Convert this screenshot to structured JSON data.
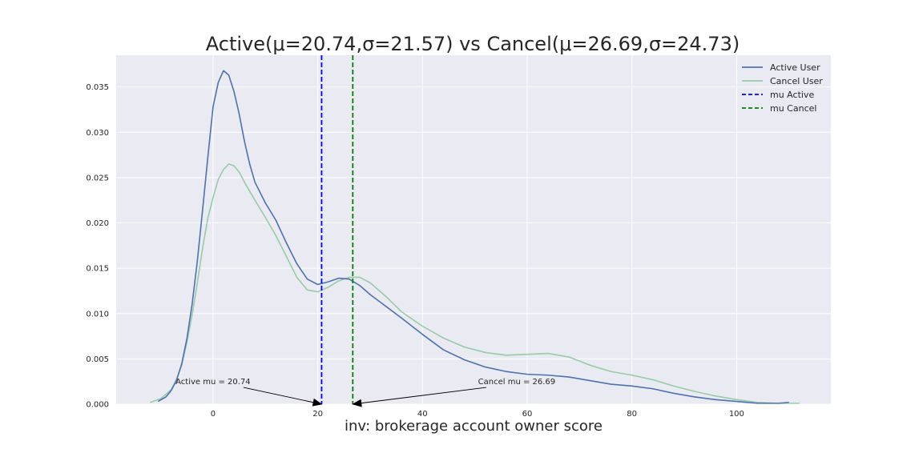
{
  "chart_data": {
    "type": "line",
    "title": "Active(μ=20.74,σ=21.57) vs Cancel(μ=26.69,σ=24.73)",
    "xlabel": "inv: brokerage account owner score",
    "ylabel": "",
    "xlim": [
      -18.5,
      118
    ],
    "ylim": [
      0,
      0.0385
    ],
    "x_ticks": [
      0,
      20,
      40,
      60,
      80,
      100
    ],
    "y_ticks": [
      0.0,
      0.005,
      0.01,
      0.015,
      0.02,
      0.025,
      0.03,
      0.035
    ],
    "y_tick_labels": [
      "0.000",
      "0.005",
      "0.010",
      "0.015",
      "0.020",
      "0.025",
      "0.030",
      "0.035"
    ],
    "grid": true,
    "legend_position": "top-right",
    "series": [
      {
        "name": "Active User",
        "color": "#4c72b0",
        "points": [
          [
            -10.5,
            0.0003
          ],
          [
            -9,
            0.0008
          ],
          [
            -8,
            0.0015
          ],
          [
            -7,
            0.0026
          ],
          [
            -6,
            0.0044
          ],
          [
            -5,
            0.0072
          ],
          [
            -4,
            0.011
          ],
          [
            -3,
            0.0158
          ],
          [
            -2,
            0.0214
          ],
          [
            -1,
            0.0272
          ],
          [
            0,
            0.0328
          ],
          [
            1,
            0.0355
          ],
          [
            2,
            0.0368
          ],
          [
            3,
            0.0363
          ],
          [
            4,
            0.0345
          ],
          [
            5,
            0.032
          ],
          [
            6,
            0.029
          ],
          [
            7,
            0.0265
          ],
          [
            8,
            0.0245
          ],
          [
            10,
            0.0222
          ],
          [
            12,
            0.0203
          ],
          [
            14,
            0.0178
          ],
          [
            16,
            0.0155
          ],
          [
            18,
            0.0138
          ],
          [
            20,
            0.0132
          ],
          [
            22,
            0.0135
          ],
          [
            24,
            0.0139
          ],
          [
            26,
            0.0138
          ],
          [
            28,
            0.0131
          ],
          [
            30,
            0.0121
          ],
          [
            33,
            0.0108
          ],
          [
            36,
            0.0095
          ],
          [
            40,
            0.0077
          ],
          [
            44,
            0.006
          ],
          [
            48,
            0.0049
          ],
          [
            52,
            0.0041
          ],
          [
            56,
            0.0036
          ],
          [
            60,
            0.0033
          ],
          [
            64,
            0.0032
          ],
          [
            68,
            0.003
          ],
          [
            72,
            0.0026
          ],
          [
            76,
            0.0022
          ],
          [
            80,
            0.002
          ],
          [
            84,
            0.0017
          ],
          [
            88,
            0.0012
          ],
          [
            92,
            0.0008
          ],
          [
            96,
            0.0005
          ],
          [
            100,
            0.0003
          ],
          [
            104,
            0.0001
          ],
          [
            108,
            0.0001
          ],
          [
            110,
            0.0002
          ]
        ]
      },
      {
        "name": "Cancel User",
        "color": "#98cba8",
        "points": [
          [
            -12,
            0.0002
          ],
          [
            -10,
            0.0006
          ],
          [
            -8,
            0.0016
          ],
          [
            -7,
            0.0027
          ],
          [
            -6,
            0.0043
          ],
          [
            -5,
            0.0068
          ],
          [
            -4,
            0.0098
          ],
          [
            -3,
            0.0134
          ],
          [
            -2,
            0.0172
          ],
          [
            -1,
            0.0205
          ],
          [
            0,
            0.0228
          ],
          [
            1,
            0.0248
          ],
          [
            2,
            0.0259
          ],
          [
            3,
            0.0265
          ],
          [
            4,
            0.0263
          ],
          [
            5,
            0.0256
          ],
          [
            6,
            0.0245
          ],
          [
            8,
            0.0225
          ],
          [
            10,
            0.0206
          ],
          [
            12,
            0.0186
          ],
          [
            14,
            0.0163
          ],
          [
            16,
            0.014
          ],
          [
            18,
            0.0126
          ],
          [
            20,
            0.0124
          ],
          [
            22,
            0.0129
          ],
          [
            24,
            0.0136
          ],
          [
            26,
            0.014
          ],
          [
            28,
            0.014
          ],
          [
            30,
            0.0134
          ],
          [
            33,
            0.0119
          ],
          [
            36,
            0.0102
          ],
          [
            40,
            0.0086
          ],
          [
            44,
            0.0073
          ],
          [
            48,
            0.0063
          ],
          [
            52,
            0.0057
          ],
          [
            56,
            0.0054
          ],
          [
            60,
            0.0055
          ],
          [
            64,
            0.0056
          ],
          [
            68,
            0.0052
          ],
          [
            72,
            0.0043
          ],
          [
            76,
            0.0036
          ],
          [
            80,
            0.0032
          ],
          [
            84,
            0.0027
          ],
          [
            88,
            0.002
          ],
          [
            92,
            0.0014
          ],
          [
            96,
            0.0009
          ],
          [
            100,
            0.0005
          ],
          [
            104,
            0.0002
          ],
          [
            108,
            0.0001
          ],
          [
            112,
            0.0001
          ]
        ]
      }
    ],
    "vlines": [
      {
        "name": "mu Active",
        "x": 20.74,
        "color": "#0000ff",
        "style": "dashed"
      },
      {
        "name": "mu Cancel",
        "x": 26.69,
        "color": "#008000",
        "style": "dashed"
      }
    ],
    "annotations": [
      {
        "text": "Active mu = 20.74",
        "x": 20.74,
        "y": 0,
        "text_x": 0,
        "text_y": 0.0022,
        "ha": "center"
      },
      {
        "text": "Cancel mu = 26.69",
        "x": 26.69,
        "y": 0,
        "text_x": 58,
        "text_y": 0.0022,
        "ha": "center"
      }
    ],
    "colors": {
      "background": "#eaeaf2",
      "grid": "#ffffff",
      "text": "#262626"
    }
  }
}
